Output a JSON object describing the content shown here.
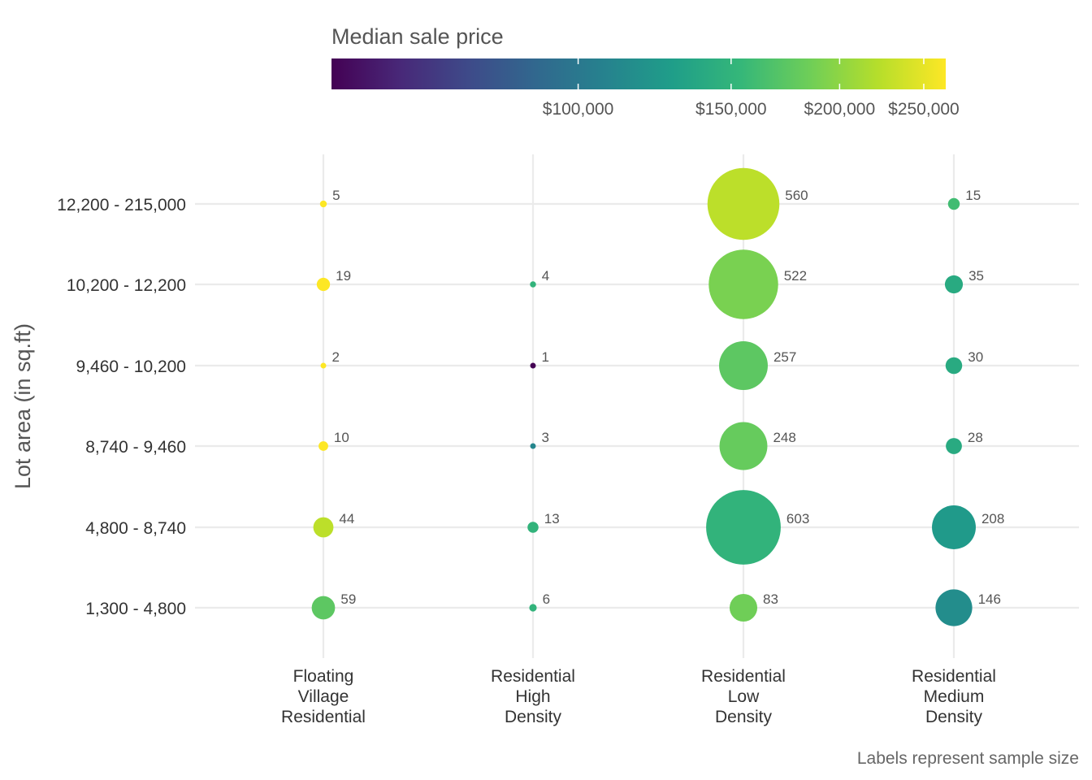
{
  "chart_data": {
    "type": "scatter",
    "subtype": "bubble",
    "xlabel": "",
    "ylabel": "Lot area (in sq.ft)",
    "caption": "Labels represent sample size",
    "x_categories": [
      [
        "Floating",
        "Village",
        "Residential"
      ],
      [
        "Residential",
        "High",
        "Density"
      ],
      [
        "Residential",
        "Low",
        "Density"
      ],
      [
        "Residential",
        "Medium",
        "Density"
      ]
    ],
    "y_categories": [
      "1,300 - 4,800",
      "4,800 - 8,740",
      "8,740 - 9,460",
      "9,460 - 10,200",
      "10,200 - 12,200",
      "12,200 - 215,000"
    ],
    "color_legend": {
      "title": "Median sale price",
      "ticks": [
        {
          "value": 100000,
          "label": "$100,000"
        },
        {
          "value": 150000,
          "label": "$150,000"
        },
        {
          "value": 200000,
          "label": "$200,000"
        },
        {
          "value": 250000,
          "label": "$250,000"
        }
      ],
      "range": [
        52000,
        265000
      ],
      "scale": "log",
      "palette": "viridis",
      "palette_stops": [
        "#440154",
        "#482878",
        "#3e4a89",
        "#31688e",
        "#26828e",
        "#1f9e89",
        "#35b779",
        "#6ece58",
        "#b5de2b",
        "#fde725"
      ]
    },
    "grid": true,
    "legend_position": "top",
    "points": [
      {
        "x": 0,
        "y": 5,
        "n": 5,
        "price": 265000
      },
      {
        "x": 0,
        "y": 4,
        "n": 19,
        "price": 265000
      },
      {
        "x": 0,
        "y": 3,
        "n": 2,
        "price": 265000
      },
      {
        "x": 0,
        "y": 2,
        "n": 10,
        "price": 265000
      },
      {
        "x": 0,
        "y": 1,
        "n": 44,
        "price": 225000
      },
      {
        "x": 0,
        "y": 0,
        "n": 59,
        "price": 175000
      },
      {
        "x": 1,
        "y": 4,
        "n": 4,
        "price": 150000
      },
      {
        "x": 1,
        "y": 3,
        "n": 1,
        "price": 52000
      },
      {
        "x": 1,
        "y": 2,
        "n": 3,
        "price": 110000
      },
      {
        "x": 1,
        "y": 1,
        "n": 13,
        "price": 150000
      },
      {
        "x": 1,
        "y": 0,
        "n": 6,
        "price": 150000
      },
      {
        "x": 2,
        "y": 5,
        "n": 560,
        "price": 225000
      },
      {
        "x": 2,
        "y": 4,
        "n": 522,
        "price": 190000
      },
      {
        "x": 2,
        "y": 3,
        "n": 257,
        "price": 175000
      },
      {
        "x": 2,
        "y": 2,
        "n": 248,
        "price": 180000
      },
      {
        "x": 2,
        "y": 1,
        "n": 603,
        "price": 150000
      },
      {
        "x": 2,
        "y": 0,
        "n": 83,
        "price": 185000
      },
      {
        "x": 3,
        "y": 5,
        "n": 15,
        "price": 160000
      },
      {
        "x": 3,
        "y": 4,
        "n": 35,
        "price": 140000
      },
      {
        "x": 3,
        "y": 3,
        "n": 30,
        "price": 140000
      },
      {
        "x": 3,
        "y": 2,
        "n": 28,
        "price": 140000
      },
      {
        "x": 3,
        "y": 1,
        "n": 208,
        "price": 125000
      },
      {
        "x": 3,
        "y": 0,
        "n": 146,
        "price": 115000
      }
    ]
  }
}
